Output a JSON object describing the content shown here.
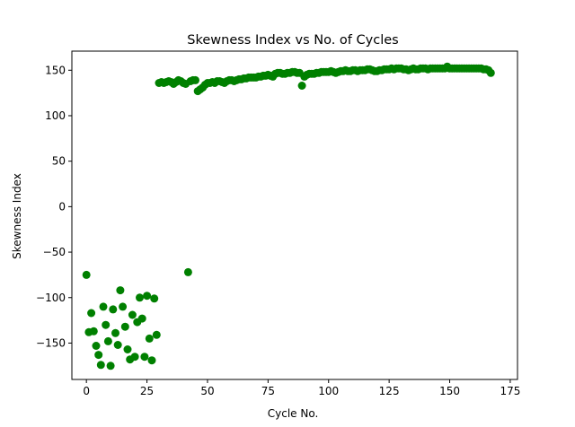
{
  "chart_data": {
    "type": "scatter",
    "title": "Skewness Index vs No. of Cycles",
    "xlabel": "Cycle No.",
    "ylabel": "Skewness Index",
    "xlim": [
      -6,
      178
    ],
    "ylim": [
      -190,
      171
    ],
    "xticks": [
      0,
      25,
      50,
      75,
      100,
      125,
      150,
      175
    ],
    "yticks": [
      -150,
      -100,
      -50,
      0,
      50,
      100,
      150
    ],
    "grid": false,
    "colors": {
      "marker": "#008000",
      "axis": "#000000",
      "background": "#ffffff"
    },
    "series": [
      {
        "points": [
          [
            0,
            -75
          ],
          [
            1,
            -138
          ],
          [
            2,
            -117
          ],
          [
            3,
            -137
          ],
          [
            4,
            -153
          ],
          [
            5,
            -163
          ],
          [
            6,
            -174
          ],
          [
            7,
            -110
          ],
          [
            8,
            -130
          ],
          [
            9,
            -148
          ],
          [
            10,
            -175
          ],
          [
            11,
            -113
          ],
          [
            12,
            -139
          ],
          [
            13,
            -152
          ],
          [
            14,
            -92
          ],
          [
            15,
            -110
          ],
          [
            16,
            -132
          ],
          [
            17,
            -157
          ],
          [
            18,
            -168
          ],
          [
            19,
            -119
          ],
          [
            20,
            -165
          ],
          [
            21,
            -127
          ],
          [
            22,
            -100
          ],
          [
            23,
            -123
          ],
          [
            24,
            -165
          ],
          [
            25,
            -98
          ],
          [
            26,
            -145
          ],
          [
            27,
            -169
          ],
          [
            28,
            -101
          ],
          [
            29,
            -141
          ],
          [
            30,
            136
          ],
          [
            31,
            137
          ],
          [
            32,
            136
          ],
          [
            33,
            137
          ],
          [
            34,
            138
          ],
          [
            35,
            137
          ],
          [
            36,
            135
          ],
          [
            37,
            137
          ],
          [
            38,
            139
          ],
          [
            39,
            138
          ],
          [
            40,
            136
          ],
          [
            41,
            135
          ],
          [
            42,
            -72
          ],
          [
            43,
            138
          ],
          [
            44,
            139
          ],
          [
            45,
            139
          ],
          [
            46,
            127
          ],
          [
            47,
            129
          ],
          [
            48,
            131
          ],
          [
            49,
            134
          ],
          [
            50,
            136
          ],
          [
            51,
            136
          ],
          [
            52,
            137
          ],
          [
            53,
            136
          ],
          [
            54,
            138
          ],
          [
            55,
            138
          ],
          [
            56,
            137
          ],
          [
            57,
            136
          ],
          [
            58,
            138
          ],
          [
            59,
            139
          ],
          [
            60,
            139
          ],
          [
            61,
            138
          ],
          [
            62,
            139
          ],
          [
            63,
            140
          ],
          [
            64,
            140
          ],
          [
            65,
            141
          ],
          [
            66,
            141
          ],
          [
            67,
            142
          ],
          [
            68,
            142
          ],
          [
            69,
            142
          ],
          [
            70,
            142
          ],
          [
            71,
            143
          ],
          [
            72,
            143
          ],
          [
            73,
            144
          ],
          [
            74,
            144
          ],
          [
            75,
            145
          ],
          [
            76,
            144
          ],
          [
            77,
            143
          ],
          [
            78,
            146
          ],
          [
            79,
            147
          ],
          [
            80,
            147
          ],
          [
            81,
            146
          ],
          [
            82,
            146
          ],
          [
            83,
            147
          ],
          [
            84,
            147
          ],
          [
            85,
            148
          ],
          [
            86,
            148
          ],
          [
            87,
            147
          ],
          [
            88,
            147
          ],
          [
            89,
            133
          ],
          [
            90,
            143
          ],
          [
            91,
            145
          ],
          [
            92,
            146
          ],
          [
            93,
            146
          ],
          [
            94,
            146
          ],
          [
            95,
            147
          ],
          [
            96,
            147
          ],
          [
            97,
            148
          ],
          [
            98,
            148
          ],
          [
            99,
            148
          ],
          [
            100,
            148
          ],
          [
            101,
            149
          ],
          [
            102,
            148
          ],
          [
            103,
            147
          ],
          [
            104,
            148
          ],
          [
            105,
            149
          ],
          [
            106,
            149
          ],
          [
            107,
            150
          ],
          [
            108,
            149
          ],
          [
            109,
            149
          ],
          [
            110,
            150
          ],
          [
            111,
            150
          ],
          [
            112,
            149
          ],
          [
            113,
            150
          ],
          [
            114,
            150
          ],
          [
            115,
            150
          ],
          [
            116,
            151
          ],
          [
            117,
            151
          ],
          [
            118,
            150
          ],
          [
            119,
            149
          ],
          [
            120,
            149
          ],
          [
            121,
            150
          ],
          [
            122,
            150
          ],
          [
            123,
            151
          ],
          [
            124,
            151
          ],
          [
            125,
            151
          ],
          [
            126,
            152
          ],
          [
            127,
            151
          ],
          [
            128,
            152
          ],
          [
            129,
            152
          ],
          [
            130,
            152
          ],
          [
            131,
            151
          ],
          [
            132,
            151
          ],
          [
            133,
            150
          ],
          [
            134,
            151
          ],
          [
            135,
            152
          ],
          [
            136,
            151
          ],
          [
            137,
            151
          ],
          [
            138,
            152
          ],
          [
            139,
            152
          ],
          [
            140,
            152
          ],
          [
            141,
            151
          ],
          [
            142,
            152
          ],
          [
            143,
            152
          ],
          [
            144,
            152
          ],
          [
            145,
            152
          ],
          [
            146,
            152
          ],
          [
            147,
            152
          ],
          [
            148,
            152
          ],
          [
            149,
            154
          ],
          [
            150,
            152
          ],
          [
            151,
            152
          ],
          [
            152,
            152
          ],
          [
            153,
            152
          ],
          [
            154,
            152
          ],
          [
            155,
            152
          ],
          [
            156,
            152
          ],
          [
            157,
            152
          ],
          [
            158,
            152
          ],
          [
            159,
            152
          ],
          [
            160,
            152
          ],
          [
            161,
            152
          ],
          [
            162,
            152
          ],
          [
            163,
            152
          ],
          [
            164,
            151
          ],
          [
            165,
            151
          ],
          [
            166,
            150
          ],
          [
            167,
            147
          ]
        ]
      }
    ]
  }
}
